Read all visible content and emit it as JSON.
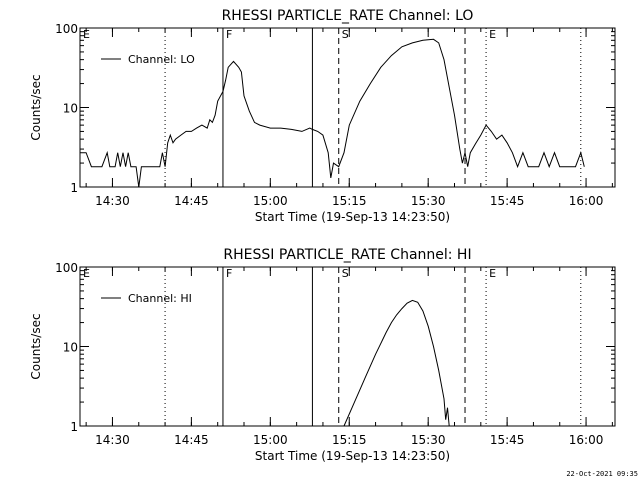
{
  "footer": {
    "timestamp": "22-Oct-2021 09:35"
  },
  "chart_data": [
    {
      "type": "line",
      "title": "RHESSI PARTICLE_RATE Channel: LO",
      "xlabel": "Start Time (19-Sep-13 14:23:50)",
      "ylabel": "Counts/sec",
      "y_scale": "log",
      "ylim": [
        1,
        100
      ],
      "yticks": [
        {
          "v": 1,
          "label": "1"
        },
        {
          "v": 10,
          "label": "10"
        },
        {
          "v": 100,
          "label": "100"
        }
      ],
      "xlim": [
        "14:23:50",
        "16:05:30"
      ],
      "xticks": [
        "14:30",
        "14:45",
        "15:00",
        "15:15",
        "15:30",
        "15:45",
        "16:00"
      ],
      "legend": {
        "position": "top-left",
        "entries": [
          "Channel: LO"
        ]
      },
      "markers": [
        {
          "label": "E",
          "time": "14:23:50",
          "style": "dotted"
        },
        {
          "label": "",
          "time": "14:40:00",
          "style": "dotted"
        },
        {
          "label": "F",
          "time": "14:51:00",
          "style": "solid"
        },
        {
          "label": "",
          "time": "15:08:00",
          "style": "solid"
        },
        {
          "label": "S",
          "time": "15:13:00",
          "style": "dashed"
        },
        {
          "label": "",
          "time": "15:37:00",
          "style": "dashed"
        },
        {
          "label": "E",
          "time": "15:41:00",
          "style": "dotted"
        },
        {
          "label": "",
          "time": "15:59:00",
          "style": "dotted"
        }
      ],
      "series": [
        {
          "name": "Channel: LO",
          "points": [
            [
              "14:23:50",
              2.7
            ],
            [
              "14:25:00",
              2.7
            ],
            [
              "14:26:00",
              1.8
            ],
            [
              "14:28:00",
              1.8
            ],
            [
              "14:29:00",
              2.7
            ],
            [
              "14:29:30",
              1.8
            ],
            [
              "14:30:30",
              1.8
            ],
            [
              "14:31:00",
              2.7
            ],
            [
              "14:31:30",
              1.8
            ],
            [
              "14:32:00",
              2.7
            ],
            [
              "14:32:30",
              1.8
            ],
            [
              "14:33:00",
              2.7
            ],
            [
              "14:33:30",
              1.8
            ],
            [
              "14:34:30",
              1.8
            ],
            [
              "14:35:00",
              1.0
            ],
            [
              "14:35:30",
              1.8
            ],
            [
              "14:39:00",
              1.8
            ],
            [
              "14:39:30",
              2.7
            ],
            [
              "14:40:00",
              1.8
            ],
            [
              "14:40:30",
              3.6
            ],
            [
              "14:41:00",
              4.5
            ],
            [
              "14:41:30",
              3.6
            ],
            [
              "14:42:00",
              4.0
            ],
            [
              "14:43:00",
              4.5
            ],
            [
              "14:44:00",
              5.0
            ],
            [
              "14:45:00",
              5.0
            ],
            [
              "14:46:00",
              5.5
            ],
            [
              "14:47:00",
              6.0
            ],
            [
              "14:48:00",
              5.5
            ],
            [
              "14:48:30",
              7.0
            ],
            [
              "14:49:00",
              6.5
            ],
            [
              "14:49:30",
              8.0
            ],
            [
              "14:50:00",
              12
            ],
            [
              "14:51:00",
              16
            ],
            [
              "14:51:30",
              22
            ],
            [
              "14:52:00",
              32
            ],
            [
              "14:53:00",
              38
            ],
            [
              "14:54:00",
              32
            ],
            [
              "14:54:30",
              28
            ],
            [
              "14:55:00",
              14
            ],
            [
              "14:56:00",
              9
            ],
            [
              "14:57:00",
              6.5
            ],
            [
              "14:58:00",
              6.0
            ],
            [
              "15:00:00",
              5.5
            ],
            [
              "15:02:00",
              5.5
            ],
            [
              "15:04:00",
              5.3
            ],
            [
              "15:06:00",
              5.0
            ],
            [
              "15:07:30",
              5.5
            ],
            [
              "15:08:00",
              5.3
            ],
            [
              "15:09:00",
              5.0
            ],
            [
              "15:10:00",
              4.5
            ],
            [
              "15:11:00",
              2.7
            ],
            [
              "15:11:30",
              1.3
            ],
            [
              "15:12:00",
              2.0
            ],
            [
              "15:13:00",
              1.8
            ],
            [
              "15:14:00",
              2.7
            ],
            [
              "15:15:00",
              6.0
            ],
            [
              "15:17:00",
              12
            ],
            [
              "15:19:00",
              20
            ],
            [
              "15:21:00",
              32
            ],
            [
              "15:23:00",
              45
            ],
            [
              "15:25:00",
              58
            ],
            [
              "15:27:00",
              65
            ],
            [
              "15:29:00",
              70
            ],
            [
              "15:31:00",
              72
            ],
            [
              "15:32:00",
              65
            ],
            [
              "15:33:00",
              40
            ],
            [
              "15:34:00",
              18
            ],
            [
              "15:35:00",
              8
            ],
            [
              "15:36:00",
              3.0
            ],
            [
              "15:36:30",
              2.0
            ],
            [
              "15:37:00",
              2.7
            ],
            [
              "15:37:30",
              1.8
            ],
            [
              "15:38:00",
              2.7
            ],
            [
              "15:39:00",
              3.5
            ],
            [
              "15:40:00",
              4.5
            ],
            [
              "15:41:00",
              6.0
            ],
            [
              "15:42:00",
              5.0
            ],
            [
              "15:43:00",
              4.0
            ],
            [
              "15:44:00",
              4.5
            ],
            [
              "15:45:00",
              3.6
            ],
            [
              "15:46:00",
              2.7
            ],
            [
              "15:47:00",
              1.8
            ],
            [
              "15:48:00",
              2.7
            ],
            [
              "15:49:00",
              1.8
            ],
            [
              "15:51:00",
              1.8
            ],
            [
              "15:52:00",
              2.7
            ],
            [
              "15:53:00",
              1.8
            ],
            [
              "15:54:00",
              2.7
            ],
            [
              "15:55:00",
              1.8
            ],
            [
              "15:58:00",
              1.8
            ],
            [
              "15:59:00",
              2.7
            ],
            [
              "15:59:40",
              1.8
            ]
          ]
        }
      ]
    },
    {
      "type": "line",
      "title": "RHESSI PARTICLE_RATE Channel: HI",
      "xlabel": "Start Time (19-Sep-13 14:23:50)",
      "ylabel": "Counts/sec",
      "y_scale": "log",
      "ylim": [
        1,
        100
      ],
      "yticks": [
        {
          "v": 1,
          "label": "1"
        },
        {
          "v": 10,
          "label": "10"
        },
        {
          "v": 100,
          "label": "100"
        }
      ],
      "xlim": [
        "14:23:50",
        "16:05:30"
      ],
      "xticks": [
        "14:30",
        "14:45",
        "15:00",
        "15:15",
        "15:30",
        "15:45",
        "16:00"
      ],
      "legend": {
        "position": "top-left",
        "entries": [
          "Channel: HI"
        ]
      },
      "markers": [
        {
          "label": "E",
          "time": "14:23:50",
          "style": "dotted"
        },
        {
          "label": "",
          "time": "14:40:00",
          "style": "dotted"
        },
        {
          "label": "F",
          "time": "14:51:00",
          "style": "solid"
        },
        {
          "label": "",
          "time": "15:08:00",
          "style": "solid"
        },
        {
          "label": "S",
          "time": "15:13:00",
          "style": "dashed"
        },
        {
          "label": "",
          "time": "15:37:00",
          "style": "dashed"
        },
        {
          "label": "E",
          "time": "15:41:00",
          "style": "dotted"
        },
        {
          "label": "",
          "time": "15:59:00",
          "style": "dotted"
        }
      ],
      "series": [
        {
          "name": "Channel: HI",
          "points": [
            [
              "15:14:00",
              1.0
            ],
            [
              "15:16:00",
              2.0
            ],
            [
              "15:18:00",
              4.0
            ],
            [
              "15:20:00",
              8.0
            ],
            [
              "15:22:00",
              15
            ],
            [
              "15:23:00",
              20
            ],
            [
              "15:24:00",
              25
            ],
            [
              "15:25:00",
              30
            ],
            [
              "15:26:00",
              35
            ],
            [
              "15:27:00",
              38
            ],
            [
              "15:28:00",
              36
            ],
            [
              "15:29:00",
              28
            ],
            [
              "15:30:00",
              18
            ],
            [
              "15:31:00",
              10
            ],
            [
              "15:32:00",
              5
            ],
            [
              "15:33:00",
              2.2
            ],
            [
              "15:33:20",
              1.2
            ],
            [
              "15:33:40",
              1.7
            ],
            [
              "15:34:00",
              1.0
            ]
          ]
        }
      ]
    }
  ]
}
